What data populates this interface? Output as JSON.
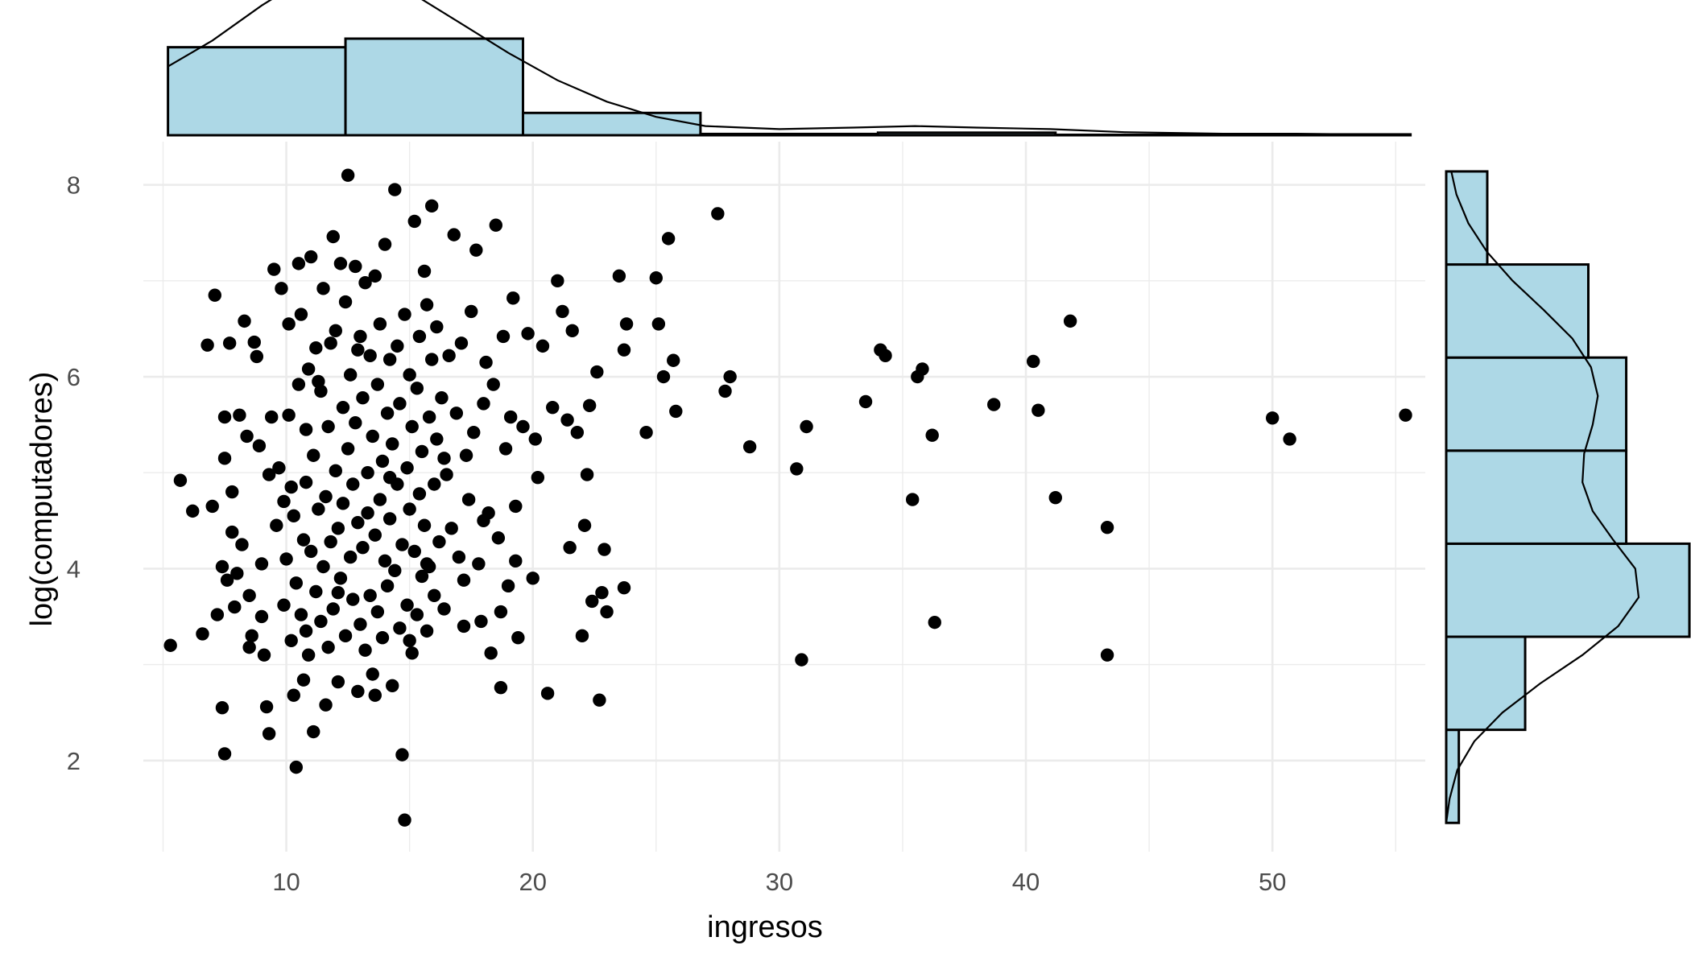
{
  "chart_data": {
    "type": "scatter",
    "marginals": "histogram with density curve",
    "xlabel": "ingresos",
    "ylabel": "log(computadores)",
    "xlim": [
      4.2,
      56.2
    ],
    "ylim": [
      1.05,
      8.45
    ],
    "x_ticks": [
      10,
      20,
      30,
      40,
      50
    ],
    "y_ticks": [
      2,
      4,
      6,
      8
    ],
    "point_color": "#000000",
    "histogram_fill": "#add8e6",
    "histogram_outline": "#000000",
    "grid": true,
    "x_hist": {
      "bins": [
        [
          5.2,
          12.4
        ],
        [
          12.4,
          19.6
        ],
        [
          19.6,
          26.8
        ],
        [
          26.8,
          34.0
        ],
        [
          34.0,
          41.2
        ],
        [
          41.2,
          48.4
        ],
        [
          48.4,
          55.6
        ]
      ],
      "counts": [
        205,
        225,
        52,
        3,
        6,
        1,
        2
      ],
      "density": [
        [
          5.2,
          0.045
        ],
        [
          7,
          0.062
        ],
        [
          9,
          0.085
        ],
        [
          10.5,
          0.1
        ],
        [
          12,
          0.108
        ],
        [
          13.5,
          0.104
        ],
        [
          15,
          0.094
        ],
        [
          17,
          0.074
        ],
        [
          19,
          0.054
        ],
        [
          21,
          0.036
        ],
        [
          23,
          0.022
        ],
        [
          25,
          0.012
        ],
        [
          27,
          0.006
        ],
        [
          30,
          0.004
        ],
        [
          33,
          0.005
        ],
        [
          35.5,
          0.006
        ],
        [
          38,
          0.005
        ],
        [
          41,
          0.004
        ],
        [
          44,
          0.002
        ],
        [
          48,
          0.001
        ],
        [
          51,
          0.001
        ],
        [
          55.6,
          0.0
        ]
      ]
    },
    "y_hist": {
      "bins": [
        [
          1.35,
          2.32
        ],
        [
          2.32,
          3.29
        ],
        [
          3.29,
          4.26
        ],
        [
          4.26,
          5.23
        ],
        [
          5.23,
          6.2
        ],
        [
          6.2,
          7.17
        ],
        [
          7.17,
          8.14
        ]
      ],
      "counts": [
        8,
        50,
        154,
        114,
        114,
        90,
        26
      ],
      "density": [
        [
          1.35,
          0.0
        ],
        [
          1.6,
          0.004
        ],
        [
          1.9,
          0.013
        ],
        [
          2.2,
          0.033
        ],
        [
          2.5,
          0.066
        ],
        [
          2.8,
          0.11
        ],
        [
          3.1,
          0.16
        ],
        [
          3.4,
          0.202
        ],
        [
          3.7,
          0.226
        ],
        [
          4.0,
          0.222
        ],
        [
          4.3,
          0.196
        ],
        [
          4.6,
          0.172
        ],
        [
          4.9,
          0.16
        ],
        [
          5.2,
          0.162
        ],
        [
          5.5,
          0.172
        ],
        [
          5.8,
          0.178
        ],
        [
          6.1,
          0.17
        ],
        [
          6.4,
          0.148
        ],
        [
          6.7,
          0.114
        ],
        [
          7.0,
          0.078
        ],
        [
          7.3,
          0.048
        ],
        [
          7.6,
          0.026
        ],
        [
          7.9,
          0.012
        ],
        [
          8.14,
          0.006
        ]
      ]
    },
    "points": [
      [
        5.3,
        3.2
      ],
      [
        5.7,
        4.92
      ],
      [
        6.2,
        4.6
      ],
      [
        6.6,
        3.32
      ],
      [
        6.8,
        6.33
      ],
      [
        7.0,
        4.65
      ],
      [
        7.1,
        6.85
      ],
      [
        7.2,
        3.52
      ],
      [
        7.4,
        2.55
      ],
      [
        7.5,
        2.07
      ],
      [
        7.4,
        4.02
      ],
      [
        7.5,
        5.15
      ],
      [
        7.5,
        5.58
      ],
      [
        7.6,
        3.88
      ],
      [
        7.7,
        6.35
      ],
      [
        7.8,
        4.38
      ],
      [
        7.9,
        3.6
      ],
      [
        8.0,
        3.95
      ],
      [
        8.2,
        4.25
      ],
      [
        8.3,
        6.58
      ],
      [
        8.4,
        5.38
      ],
      [
        8.5,
        3.72
      ],
      [
        8.5,
        3.18
      ],
      [
        8.6,
        3.3
      ],
      [
        8.7,
        6.36
      ],
      [
        8.8,
        6.21
      ],
      [
        8.9,
        5.28
      ],
      [
        9.0,
        4.05
      ],
      [
        9.0,
        3.5
      ],
      [
        9.2,
        2.56
      ],
      [
        9.3,
        4.98
      ],
      [
        9.3,
        2.28
      ],
      [
        9.4,
        5.58
      ],
      [
        9.5,
        7.12
      ],
      [
        9.6,
        4.45
      ],
      [
        9.7,
        5.05
      ],
      [
        9.8,
        6.92
      ],
      [
        9.9,
        3.62
      ],
      [
        10.0,
        4.1
      ],
      [
        10.1,
        5.6
      ],
      [
        10.1,
        6.55
      ],
      [
        10.2,
        4.85
      ],
      [
        10.2,
        3.25
      ],
      [
        10.3,
        4.55
      ],
      [
        10.3,
        2.68
      ],
      [
        10.4,
        3.85
      ],
      [
        10.4,
        1.93
      ],
      [
        10.5,
        5.92
      ],
      [
        10.5,
        7.18
      ],
      [
        10.6,
        6.65
      ],
      [
        10.6,
        3.52
      ],
      [
        10.7,
        4.3
      ],
      [
        10.7,
        2.84
      ],
      [
        10.8,
        5.45
      ],
      [
        10.8,
        4.9
      ],
      [
        10.9,
        3.1
      ],
      [
        10.9,
        6.08
      ],
      [
        11.0,
        7.25
      ],
      [
        11.0,
        4.18
      ],
      [
        11.1,
        5.18
      ],
      [
        11.1,
        2.3
      ],
      [
        11.2,
        3.76
      ],
      [
        11.2,
        6.3
      ],
      [
        11.3,
        4.62
      ],
      [
        11.4,
        3.45
      ],
      [
        11.4,
        5.85
      ],
      [
        11.5,
        4.02
      ],
      [
        11.5,
        6.92
      ],
      [
        11.6,
        2.58
      ],
      [
        11.6,
        4.75
      ],
      [
        11.7,
        3.18
      ],
      [
        11.7,
        5.48
      ],
      [
        11.8,
        6.35
      ],
      [
        11.8,
        4.28
      ],
      [
        11.9,
        7.46
      ],
      [
        11.9,
        3.58
      ],
      [
        12.0,
        5.02
      ],
      [
        12.0,
        6.48
      ],
      [
        12.1,
        4.42
      ],
      [
        12.1,
        2.82
      ],
      [
        12.2,
        7.18
      ],
      [
        12.2,
        3.9
      ],
      [
        12.3,
        5.68
      ],
      [
        12.3,
        4.68
      ],
      [
        12.4,
        6.78
      ],
      [
        12.4,
        3.3
      ],
      [
        12.5,
        5.25
      ],
      [
        12.5,
        8.1
      ],
      [
        12.6,
        4.12
      ],
      [
        12.6,
        6.02
      ],
      [
        12.7,
        3.68
      ],
      [
        12.7,
        4.88
      ],
      [
        12.8,
        5.52
      ],
      [
        12.8,
        7.15
      ],
      [
        12.9,
        2.72
      ],
      [
        12.9,
        4.48
      ],
      [
        13.0,
        6.42
      ],
      [
        13.0,
        3.42
      ],
      [
        13.1,
        5.78
      ],
      [
        13.1,
        4.22
      ],
      [
        13.2,
        6.98
      ],
      [
        13.2,
        3.15
      ],
      [
        13.3,
        5.0
      ],
      [
        13.3,
        4.58
      ],
      [
        13.4,
        6.22
      ],
      [
        13.4,
        3.72
      ],
      [
        13.5,
        5.38
      ],
      [
        13.5,
        2.9
      ],
      [
        13.6,
        7.05
      ],
      [
        13.6,
        4.35
      ],
      [
        13.7,
        5.92
      ],
      [
        13.7,
        3.55
      ],
      [
        13.8,
        4.72
      ],
      [
        13.8,
        6.55
      ],
      [
        13.9,
        3.28
      ],
      [
        13.9,
        5.12
      ],
      [
        14.0,
        4.08
      ],
      [
        14.0,
        7.38
      ],
      [
        14.1,
        5.62
      ],
      [
        14.1,
        3.82
      ],
      [
        14.2,
        6.18
      ],
      [
        14.2,
        4.52
      ],
      [
        14.3,
        2.78
      ],
      [
        14.3,
        5.3
      ],
      [
        14.4,
        7.95
      ],
      [
        14.4,
        3.98
      ],
      [
        14.5,
        4.88
      ],
      [
        14.5,
        6.32
      ],
      [
        14.6,
        3.38
      ],
      [
        14.6,
        5.72
      ],
      [
        14.7,
        4.25
      ],
      [
        14.7,
        2.06
      ],
      [
        14.8,
        6.65
      ],
      [
        14.8,
        1.38
      ],
      [
        14.9,
        5.05
      ],
      [
        14.9,
        3.62
      ],
      [
        15.0,
        4.62
      ],
      [
        15.0,
        6.02
      ],
      [
        15.1,
        3.12
      ],
      [
        15.1,
        5.48
      ],
      [
        15.2,
        7.62
      ],
      [
        15.2,
        4.18
      ],
      [
        15.3,
        5.88
      ],
      [
        15.3,
        3.52
      ],
      [
        15.4,
        4.78
      ],
      [
        15.4,
        6.42
      ],
      [
        15.5,
        3.92
      ],
      [
        15.5,
        5.22
      ],
      [
        15.6,
        7.1
      ],
      [
        15.6,
        4.45
      ],
      [
        15.7,
        6.75
      ],
      [
        15.7,
        3.35
      ],
      [
        15.8,
        5.58
      ],
      [
        15.8,
        4.02
      ],
      [
        15.9,
        7.78
      ],
      [
        15.9,
        6.18
      ],
      [
        16.0,
        4.88
      ],
      [
        16.0,
        3.72
      ],
      [
        16.1,
        5.35
      ],
      [
        16.1,
        6.52
      ],
      [
        16.2,
        4.28
      ],
      [
        16.3,
        5.78
      ],
      [
        16.4,
        3.58
      ],
      [
        16.5,
        4.98
      ],
      [
        16.6,
        6.22
      ],
      [
        16.7,
        4.42
      ],
      [
        16.8,
        7.48
      ],
      [
        16.9,
        5.62
      ],
      [
        17.0,
        4.12
      ],
      [
        17.1,
        6.35
      ],
      [
        17.2,
        3.88
      ],
      [
        17.3,
        5.18
      ],
      [
        17.4,
        4.72
      ],
      [
        17.5,
        6.68
      ],
      [
        17.6,
        5.42
      ],
      [
        17.7,
        7.32
      ],
      [
        17.8,
        4.05
      ],
      [
        17.9,
        3.45
      ],
      [
        18.0,
        5.72
      ],
      [
        18.1,
        6.15
      ],
      [
        18.2,
        4.58
      ],
      [
        18.3,
        3.12
      ],
      [
        18.4,
        5.92
      ],
      [
        18.5,
        7.58
      ],
      [
        18.6,
        4.32
      ],
      [
        18.7,
        2.76
      ],
      [
        18.8,
        6.42
      ],
      [
        18.9,
        5.25
      ],
      [
        19.0,
        3.82
      ],
      [
        19.1,
        5.58
      ],
      [
        19.2,
        6.82
      ],
      [
        19.3,
        4.08
      ],
      [
        19.4,
        3.28
      ],
      [
        19.6,
        5.48
      ],
      [
        19.8,
        6.45
      ],
      [
        20.0,
        3.9
      ],
      [
        20.2,
        4.95
      ],
      [
        20.4,
        6.32
      ],
      [
        20.6,
        2.7
      ],
      [
        20.8,
        5.68
      ],
      [
        21.0,
        7.0
      ],
      [
        21.2,
        6.68
      ],
      [
        21.4,
        5.55
      ],
      [
        21.6,
        6.48
      ],
      [
        21.8,
        5.42
      ],
      [
        22.0,
        3.3
      ],
      [
        22.1,
        4.45
      ],
      [
        22.2,
        4.98
      ],
      [
        22.4,
        3.66
      ],
      [
        22.6,
        6.05
      ],
      [
        22.7,
        2.63
      ],
      [
        22.8,
        3.75
      ],
      [
        22.9,
        4.2
      ],
      [
        23.0,
        3.55
      ],
      [
        23.5,
        7.05
      ],
      [
        23.7,
        6.28
      ],
      [
        23.8,
        6.55
      ],
      [
        23.7,
        3.8
      ],
      [
        24.6,
        5.42
      ],
      [
        25.0,
        7.03
      ],
      [
        25.1,
        6.55
      ],
      [
        25.3,
        6.0
      ],
      [
        25.5,
        7.44
      ],
      [
        25.7,
        6.17
      ],
      [
        25.8,
        5.64
      ],
      [
        27.5,
        7.7
      ],
      [
        27.8,
        5.85
      ],
      [
        28.0,
        6.0
      ],
      [
        28.8,
        5.27
      ],
      [
        30.7,
        5.04
      ],
      [
        30.9,
        3.05
      ],
      [
        31.1,
        5.48
      ],
      [
        33.5,
        5.74
      ],
      [
        34.1,
        6.28
      ],
      [
        34.3,
        6.22
      ],
      [
        35.4,
        4.72
      ],
      [
        35.6,
        6.0
      ],
      [
        35.8,
        6.08
      ],
      [
        36.2,
        5.39
      ],
      [
        36.3,
        3.44
      ],
      [
        38.7,
        5.71
      ],
      [
        40.3,
        6.16
      ],
      [
        40.5,
        5.65
      ],
      [
        41.2,
        4.74
      ],
      [
        41.8,
        6.58
      ],
      [
        43.3,
        4.43
      ],
      [
        43.3,
        3.1
      ],
      [
        50.0,
        5.57
      ],
      [
        50.7,
        5.35
      ],
      [
        55.4,
        5.6
      ],
      [
        7.8,
        4.8
      ],
      [
        8.1,
        5.6
      ],
      [
        9.1,
        3.1
      ],
      [
        9.9,
        4.7
      ],
      [
        10.8,
        3.35
      ],
      [
        11.3,
        5.95
      ],
      [
        12.1,
        3.75
      ],
      [
        12.9,
        6.28
      ],
      [
        13.6,
        2.68
      ],
      [
        14.2,
        4.95
      ],
      [
        15.0,
        3.25
      ],
      [
        15.7,
        4.05
      ],
      [
        16.4,
        5.15
      ],
      [
        17.2,
        3.4
      ],
      [
        18.0,
        4.5
      ],
      [
        18.7,
        3.55
      ],
      [
        19.3,
        4.65
      ],
      [
        20.1,
        5.35
      ],
      [
        21.5,
        4.22
      ],
      [
        22.3,
        5.7
      ]
    ]
  }
}
